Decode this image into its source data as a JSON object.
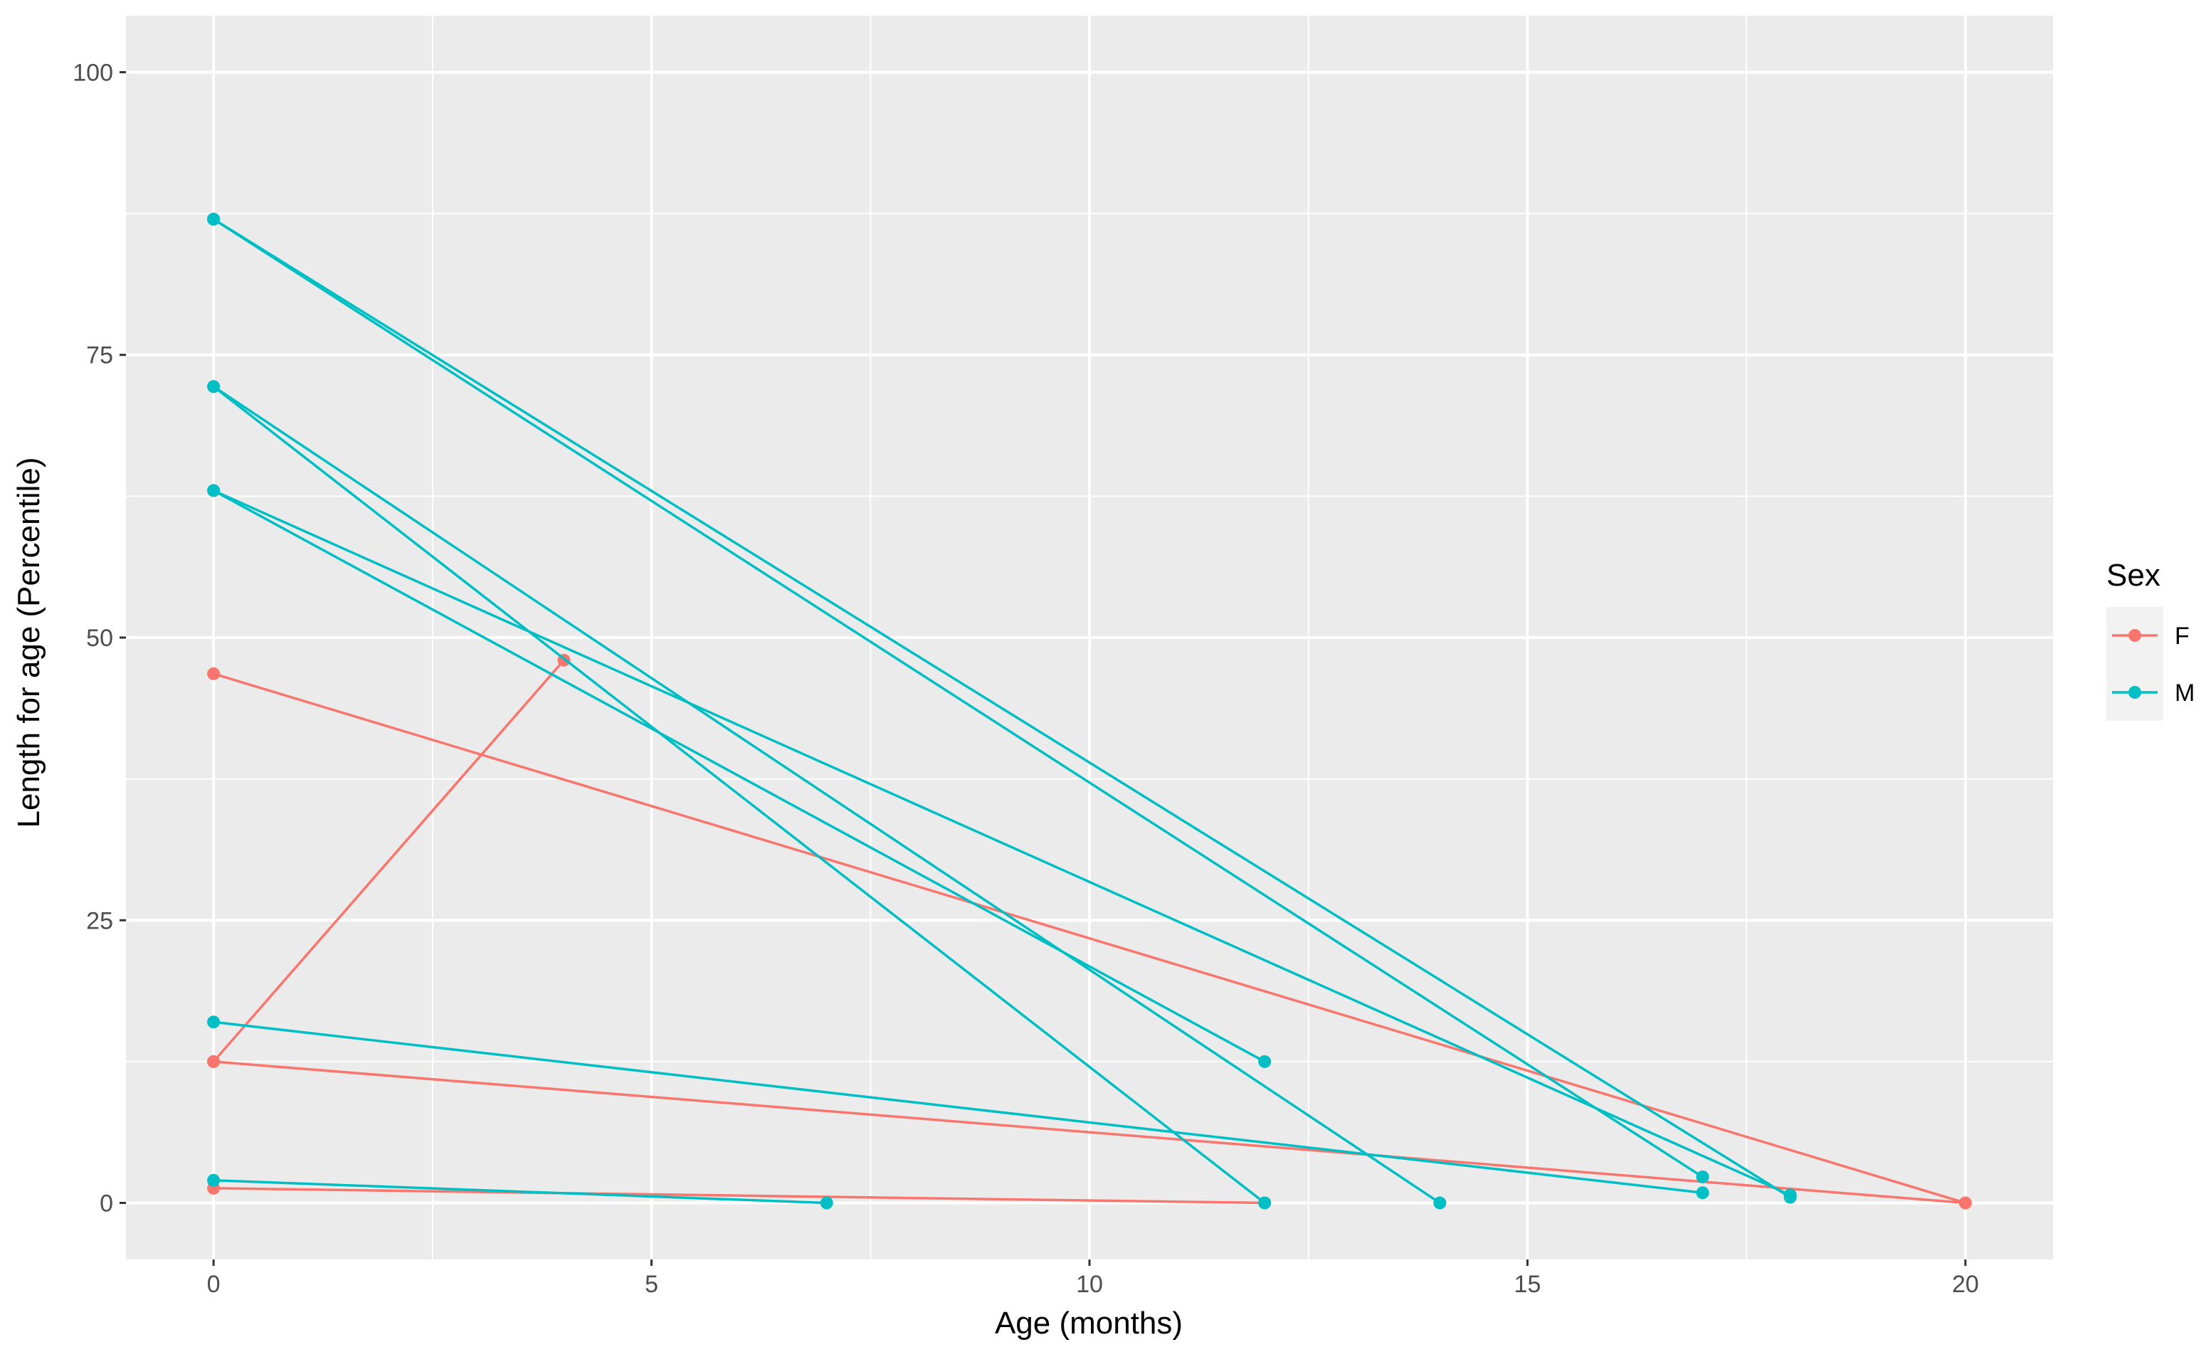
{
  "chart_data": {
    "type": "line",
    "title": "",
    "xlabel": "Age (months)",
    "ylabel": "Length for age (Percentile)",
    "xlim": [
      -1,
      21
    ],
    "ylim": [
      -5,
      105
    ],
    "x_ticks": [
      0,
      5,
      10,
      15,
      20
    ],
    "y_ticks": [
      0,
      25,
      50,
      75,
      100
    ],
    "x_tick_labels": [
      "0",
      "5",
      "10",
      "15",
      "20"
    ],
    "y_tick_labels": [
      "0",
      "25",
      "50",
      "75",
      "100"
    ],
    "grid": true,
    "legend": {
      "title": "Sex",
      "placement": "right",
      "entries": [
        {
          "label": "F",
          "color": "#F8766D"
        },
        {
          "label": "M",
          "color": "#00BFC4"
        }
      ]
    },
    "series": [
      {
        "name": "F",
        "color": "#F8766D",
        "lines": [
          {
            "x": [
              0,
              4
            ],
            "y": [
              12.5,
              48
            ]
          },
          {
            "x": [
              0,
              20
            ],
            "y": [
              46.8,
              0
            ]
          },
          {
            "x": [
              0,
              20
            ],
            "y": [
              12.5,
              0
            ]
          },
          {
            "x": [
              0,
              12
            ],
            "y": [
              1.3,
              0
            ]
          }
        ]
      },
      {
        "name": "M",
        "color": "#00BFC4",
        "lines": [
          {
            "x": [
              0,
              17
            ],
            "y": [
              87,
              2.3
            ]
          },
          {
            "x": [
              0,
              18
            ],
            "y": [
              87,
              0.5
            ]
          },
          {
            "x": [
              0,
              12
            ],
            "y": [
              72.2,
              0
            ]
          },
          {
            "x": [
              0,
              14
            ],
            "y": [
              72.2,
              0
            ]
          },
          {
            "x": [
              0,
              18
            ],
            "y": [
              63,
              0.7
            ]
          },
          {
            "x": [
              0,
              12
            ],
            "y": [
              63,
              12.5
            ]
          },
          {
            "x": [
              0,
              17
            ],
            "y": [
              16,
              0.9
            ]
          },
          {
            "x": [
              0,
              7
            ],
            "y": [
              2,
              0
            ]
          }
        ]
      }
    ]
  },
  "colors": {
    "panel_background": "#EBEBEB",
    "grid": "#FFFFFF",
    "legend_key_background": "#F2F2F2"
  }
}
